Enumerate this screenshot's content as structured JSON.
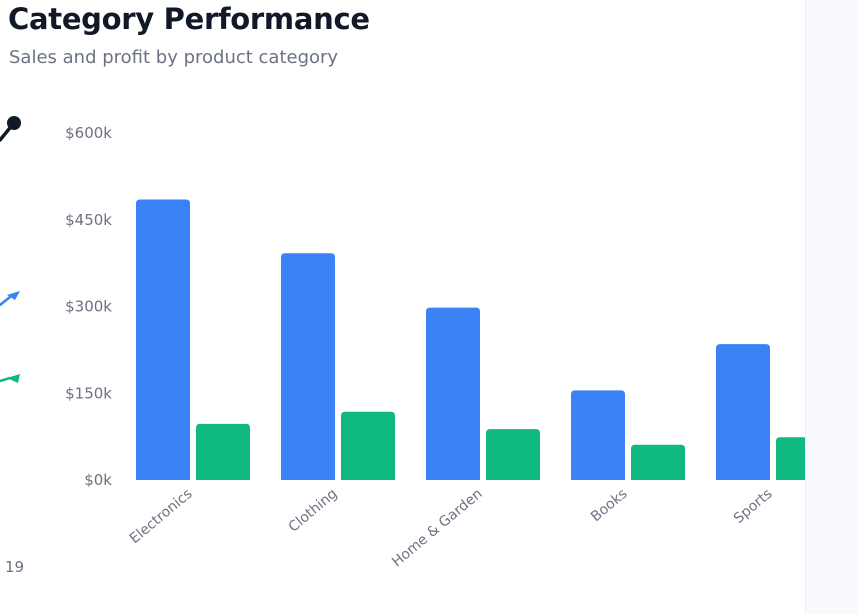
{
  "header": {
    "title": "Category Performance",
    "subtitle": "Sales and profit by product category"
  },
  "left_edge": {
    "partial_text": "19"
  },
  "colors": {
    "sales": "#3b82f6",
    "profit": "#10b981",
    "axis_text": "#6b7280",
    "marker_dark": "#111827"
  },
  "chart_data": {
    "type": "bar",
    "title": "Category Performance",
    "subtitle": "Sales and profit by product category",
    "categories": [
      "Electronics",
      "Clothing",
      "Home & Garden",
      "Books",
      "Sports"
    ],
    "series": [
      {
        "values": [
          485000,
          392000,
          298000,
          155000,
          235000
        ],
        "color": "#3b82f6"
      },
      {
        "values": [
          97000,
          118000,
          88000,
          61000,
          74000
        ],
        "color": "#10b981"
      }
    ],
    "ylim": [
      0,
      600000
    ],
    "yticks": [
      0,
      150000,
      300000,
      450000,
      600000
    ],
    "ytick_labels": [
      "$0k",
      "$150k",
      "$300k",
      "$450k",
      "$600k"
    ],
    "grid": false
  }
}
